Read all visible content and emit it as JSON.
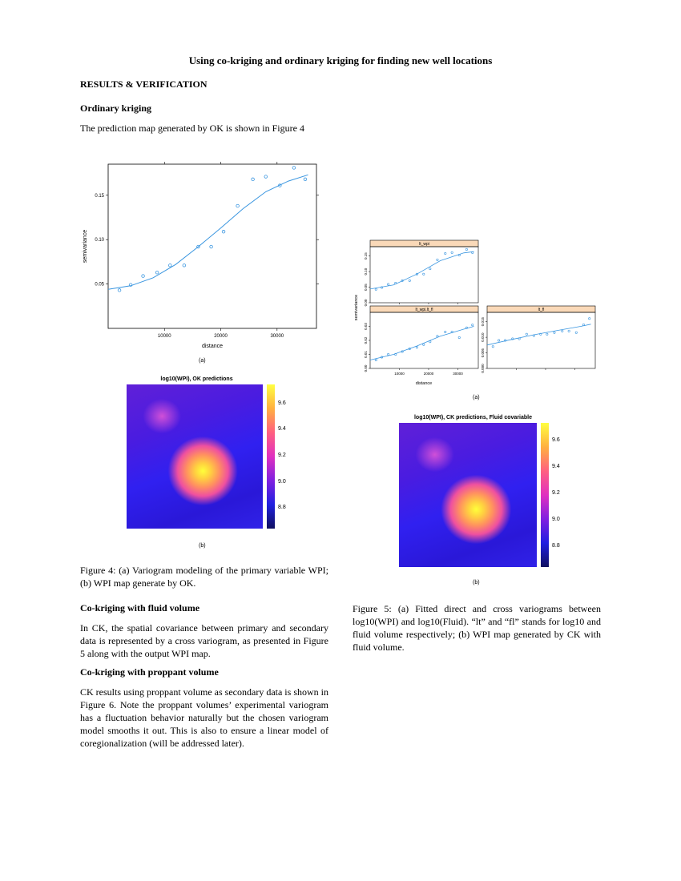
{
  "header": {
    "title": "Using co-kriging and ordinary kriging for finding new well locations"
  },
  "sections": {
    "results": "RESULTS & VERIFICATION",
    "ok_head": "Ordinary kriging",
    "ok_text": "The prediction map generated by OK is shown in Figure 4",
    "ck_fluid_head": "Co-kriging with fluid volume",
    "ck_fluid_text": "In CK, the spatial covariance between primary and secondary data is represented by a cross variogram, as presented in Figure 5 along with the output WPI map.",
    "ck_prop_head": "Co-kriging with proppant volume",
    "ck_prop_text": "CK results using proppant volume as secondary data is shown in Figure 6. Note the proppant volumes’ experimental variogram has a fluctuation behavior naturally but the chosen variogram model smooths it out. This is also to ensure a linear model of coregionalization (will be addressed later)."
  },
  "figure4": {
    "caption": "Figure 4:   (a) Variogram modeling of the primary variable WPI; (b) WPI map generate by OK.",
    "sub_a": "(a)",
    "sub_b": "(b)",
    "map_title": "log10(WPI), OK predictions",
    "colorbar_ticks": [
      "9.6",
      "9.4",
      "9.2",
      "9.0",
      "8.8"
    ]
  },
  "figure5": {
    "caption": "Figure 5:   (a) Fitted direct and cross variograms between log10(WPI) and log10(Fluid). “lt” and “fl” stands for log10 and fluid volume respectively; (b) WPI map generated by CK with fluid volume.",
    "sub_a": "(a)",
    "sub_b": "(b)",
    "panel_titles": [
      "lt_wpi",
      "lt_wpi.lt_fl",
      "lt_fl"
    ],
    "map_title": "log10(WPI), CK predictions, Fluid covariable",
    "colorbar_ticks": [
      "9.6",
      "9.4",
      "9.2",
      "9.0",
      "8.8"
    ]
  },
  "chart_data": [
    {
      "type": "scatter",
      "title": "",
      "xlabel": "distance",
      "ylabel": "semivariance",
      "xticks": [
        "10000",
        "20000",
        "30000"
      ],
      "yticks": [
        "0.05",
        "0.10",
        "0.15"
      ],
      "xlim": [
        0,
        37000
      ],
      "ylim": [
        0.0,
        0.185
      ],
      "points": [
        [
          2000,
          0.043
        ],
        [
          4000,
          0.049
        ],
        [
          6200,
          0.059
        ],
        [
          8700,
          0.063
        ],
        [
          11000,
          0.071
        ],
        [
          13500,
          0.071
        ],
        [
          16000,
          0.092
        ],
        [
          18300,
          0.092
        ],
        [
          20500,
          0.109
        ],
        [
          23000,
          0.138
        ],
        [
          25700,
          0.168
        ],
        [
          28000,
          0.171
        ],
        [
          30500,
          0.161
        ],
        [
          33000,
          0.181
        ],
        [
          35000,
          0.168
        ]
      ],
      "fit": [
        [
          0,
          0.044
        ],
        [
          4000,
          0.048
        ],
        [
          8000,
          0.057
        ],
        [
          12000,
          0.072
        ],
        [
          16000,
          0.092
        ],
        [
          20000,
          0.113
        ],
        [
          24000,
          0.135
        ],
        [
          28000,
          0.154
        ],
        [
          32000,
          0.166
        ],
        [
          35500,
          0.173
        ]
      ]
    },
    {
      "type": "scatter",
      "xlabel": "distance",
      "ylabel": "semivariance",
      "panels": [
        {
          "name": "lt_wpi",
          "yticks": [
            "0.00",
            "0.05",
            "0.10",
            "0.15"
          ],
          "ylim": [
            0,
            0.18
          ],
          "points": [
            [
              2000,
              0.043
            ],
            [
              4000,
              0.049
            ],
            [
              6200,
              0.059
            ],
            [
              8700,
              0.063
            ],
            [
              11000,
              0.071
            ],
            [
              13500,
              0.071
            ],
            [
              16000,
              0.092
            ],
            [
              18300,
              0.092
            ],
            [
              20500,
              0.109
            ],
            [
              23000,
              0.138
            ],
            [
              25700,
              0.158
            ],
            [
              28000,
              0.161
            ],
            [
              30500,
              0.153
            ],
            [
              33000,
              0.171
            ],
            [
              35000,
              0.161
            ]
          ],
          "fit": [
            [
              0,
              0.044
            ],
            [
              8000,
              0.057
            ],
            [
              16000,
              0.092
            ],
            [
              24000,
              0.135
            ],
            [
              32000,
              0.16
            ],
            [
              35500,
              0.164
            ]
          ]
        },
        {
          "name": "lt_wpi.lt_fl",
          "yticks": [
            "0.00",
            "0.01",
            "0.02",
            "0.03"
          ],
          "ylim": [
            0,
            0.04
          ],
          "points": [
            [
              2000,
              0.006
            ],
            [
              4000,
              0.008
            ],
            [
              6200,
              0.01
            ],
            [
              8700,
              0.01
            ],
            [
              11000,
              0.012
            ],
            [
              13500,
              0.014
            ],
            [
              16000,
              0.015
            ],
            [
              18300,
              0.017
            ],
            [
              20500,
              0.019
            ],
            [
              23000,
              0.023
            ],
            [
              25700,
              0.026
            ],
            [
              28000,
              0.026
            ],
            [
              30500,
              0.022
            ],
            [
              33000,
              0.029
            ],
            [
              35000,
              0.031
            ]
          ],
          "fit": [
            [
              0,
              0.006
            ],
            [
              8000,
              0.01
            ],
            [
              16000,
              0.016
            ],
            [
              24000,
              0.023
            ],
            [
              32000,
              0.028
            ],
            [
              35500,
              0.03
            ]
          ]
        },
        {
          "name": "lt_fl",
          "yticks": [
            "0.000",
            "0.005",
            "0.010",
            "0.015"
          ],
          "ylim": [
            0,
            0.018
          ],
          "points": [
            [
              2000,
              0.007
            ],
            [
              4000,
              0.009
            ],
            [
              6200,
              0.009
            ],
            [
              8700,
              0.0095
            ],
            [
              11000,
              0.0095
            ],
            [
              13500,
              0.011
            ],
            [
              16000,
              0.0105
            ],
            [
              18300,
              0.011
            ],
            [
              20500,
              0.011
            ],
            [
              23000,
              0.0115
            ],
            [
              25700,
              0.012
            ],
            [
              28000,
              0.012
            ],
            [
              30500,
              0.0115
            ],
            [
              33000,
              0.014
            ],
            [
              35000,
              0.016
            ]
          ],
          "fit": [
            [
              0,
              0.0075
            ],
            [
              8000,
              0.0092
            ],
            [
              16000,
              0.0108
            ],
            [
              24000,
              0.0122
            ],
            [
              32000,
              0.0135
            ],
            [
              35500,
              0.0142
            ]
          ]
        }
      ],
      "xticks": [
        "10000",
        "20000",
        "30000"
      ],
      "xlim": [
        0,
        37000
      ]
    }
  ]
}
